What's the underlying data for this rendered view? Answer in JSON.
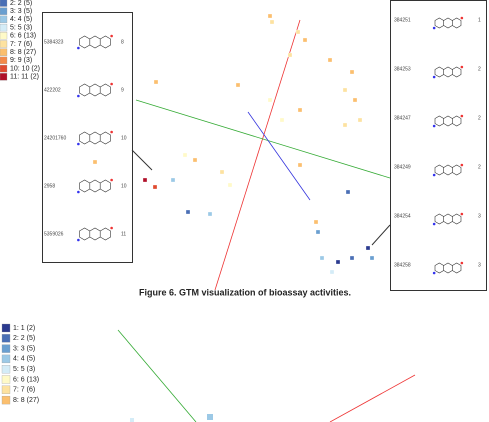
{
  "figure_1": {
    "legend": [
      "2: 2 (5)",
      "3: 3 (5)",
      "4: 4 (5)",
      "5: 5 (3)",
      "6: 6 (13)",
      "7: 7 (6)",
      "8: 8 (27)",
      "9: 9 (3)",
      "10: 10 (2)",
      "11: 11 (2)"
    ],
    "left_panel": [
      [
        "5384323",
        "8"
      ],
      [
        "422202",
        "9"
      ],
      [
        "24201760",
        "10"
      ],
      [
        "2958",
        "10"
      ],
      [
        "5359026",
        "11"
      ]
    ],
    "right_panel": [
      [
        "384251",
        "1"
      ],
      [
        "384253",
        "2"
      ],
      [
        "384247",
        "2"
      ],
      [
        "384249",
        "2"
      ],
      [
        "384254",
        "3"
      ],
      [
        "384258",
        "3"
      ]
    ],
    "caption": "Figure 6. GTM visualization of  bioassay activities."
  },
  "figure_2": {
    "legend": [
      "1: 1 (2)",
      "2: 2 (5)",
      "3: 3 (5)",
      "4: 4 (5)",
      "5: 5 (3)",
      "6: 6 (13)",
      "7: 7 (6)",
      "8: 8 (27)"
    ]
  }
}
